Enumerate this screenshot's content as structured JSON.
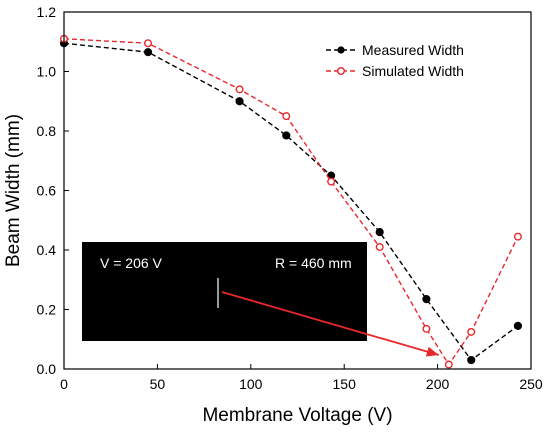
{
  "chart_data": {
    "type": "line",
    "xlabel": "Membrane Voltage (V)",
    "ylabel": "Beam Width (mm)",
    "xlim": [
      0,
      250
    ],
    "ylim": [
      0,
      1.2
    ],
    "xticks": [
      "0",
      "50",
      "100",
      "150",
      "200",
      "250"
    ],
    "yticks": [
      "0.0",
      "0.2",
      "0.4",
      "0.6",
      "0.8",
      "1.0",
      "1.2"
    ],
    "grid": false,
    "legend_position": "top-right",
    "series": [
      {
        "name": "Measured Width",
        "color": "#000000",
        "marker": "filled-circle",
        "line": "dashed",
        "x": [
          0,
          45,
          94,
          119,
          143,
          169,
          194,
          218,
          243
        ],
        "y": [
          1.095,
          1.065,
          0.9,
          0.785,
          0.65,
          0.46,
          0.235,
          0.03,
          0.145
        ]
      },
      {
        "name": "Simulated Width",
        "color": "#e8282b",
        "marker": "open-circle",
        "line": "dashed",
        "x": [
          0,
          45,
          94,
          119,
          143,
          169,
          194,
          206,
          218,
          243
        ],
        "y": [
          1.11,
          1.095,
          0.94,
          0.85,
          0.63,
          0.41,
          0.135,
          0.015,
          0.125,
          0.445
        ]
      }
    ],
    "inset": {
      "label_voltage": "V = 206 V",
      "label_radius": "R = 460 mm",
      "arrow_color": "#e8282b",
      "arrow_target": {
        "x": 206,
        "y": 0.02
      }
    }
  }
}
